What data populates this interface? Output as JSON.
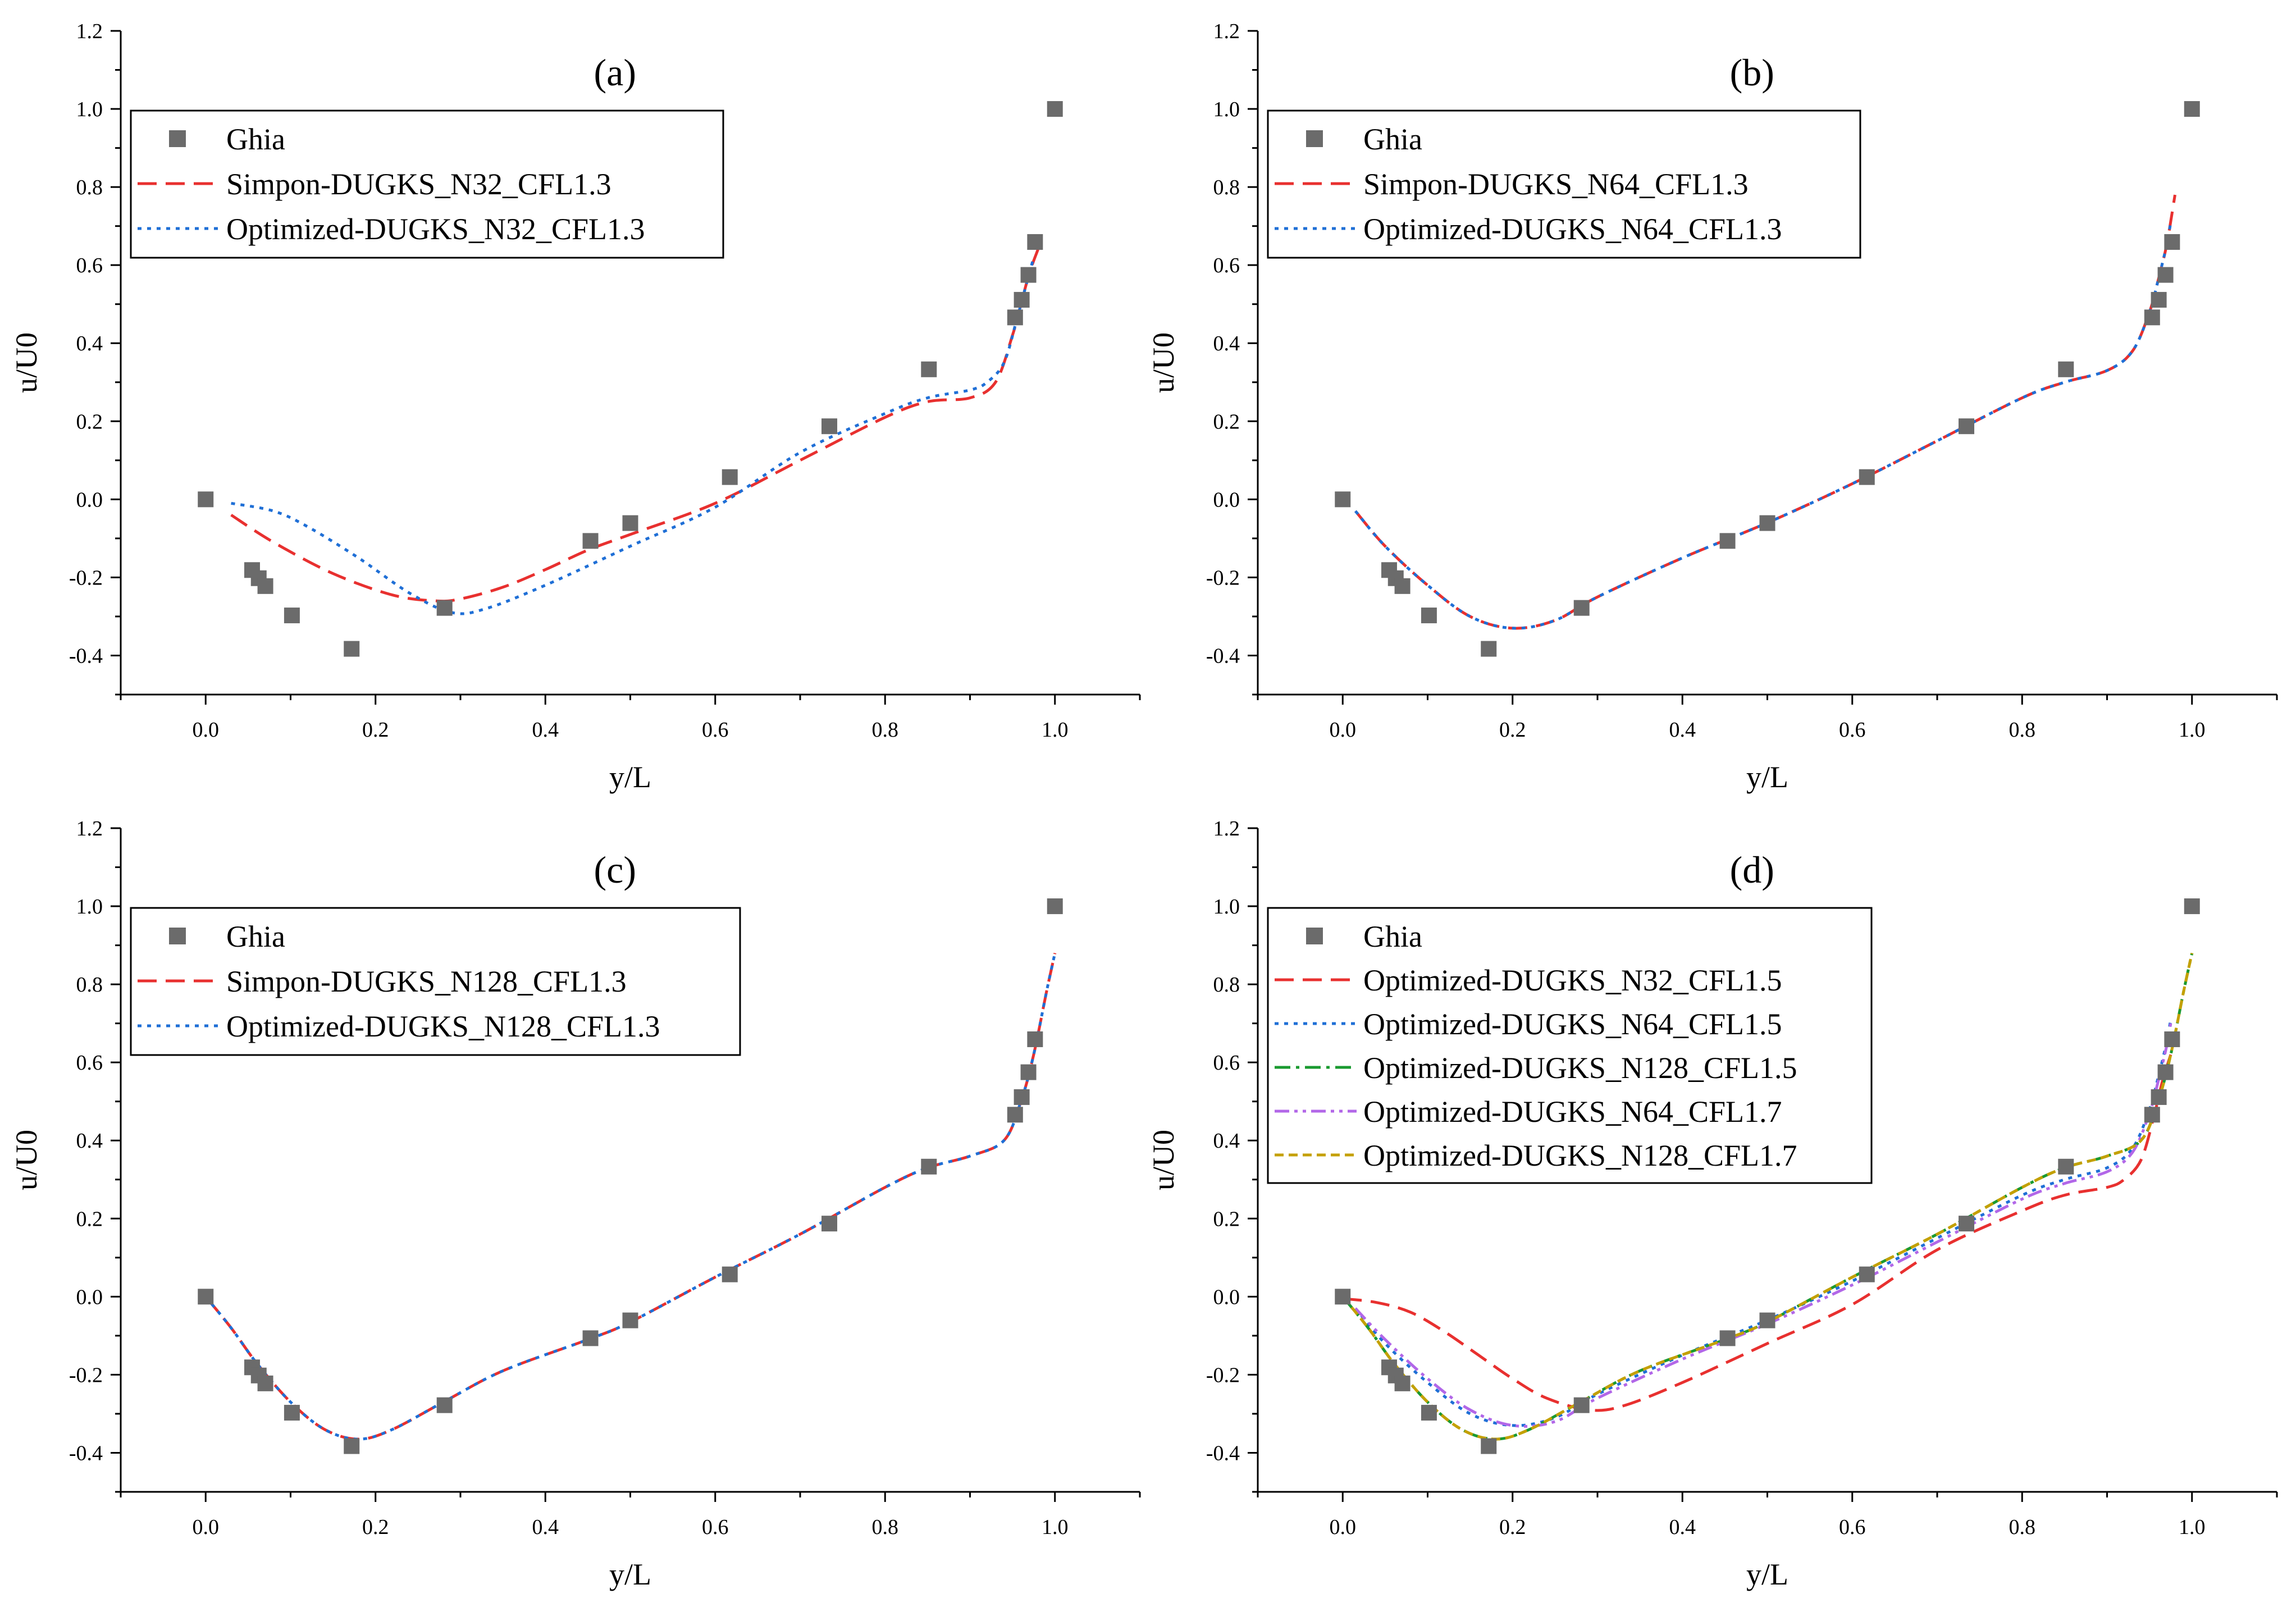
{
  "chart_data": [
    {
      "type": "line",
      "title": "(a)",
      "xlabel": "y/L",
      "ylabel": "u/U0",
      "xlim": [
        -0.1,
        1.1
      ],
      "ylim": [
        -0.5,
        1.2
      ],
      "xticks": [
        0.0,
        0.2,
        0.4,
        0.6,
        0.8,
        1.0
      ],
      "xtick_labels": [
        "0.0",
        "0.2",
        "0.4",
        "0.6",
        "0.8",
        "1.0"
      ],
      "yticks": [
        -0.4,
        -0.2,
        0.0,
        0.2,
        0.4,
        0.6,
        0.8,
        1.0,
        1.2
      ],
      "ytick_labels": [
        "-0.4",
        "-0.2",
        "0.0",
        "0.2",
        "0.4",
        "0.6",
        "0.8",
        "1.0",
        "1.2"
      ],
      "legend": "top-left",
      "series": [
        {
          "name": "Ghia",
          "kind": "marker",
          "color": "#6b6b6b",
          "x": [
            0.0,
            0.0547,
            0.0625,
            0.0703,
            0.1016,
            0.1719,
            0.2813,
            0.4531,
            0.5,
            0.6172,
            0.7344,
            0.8516,
            0.9531,
            0.9609,
            0.9688,
            0.9766,
            1.0
          ],
          "y": [
            0.0,
            -0.18109,
            -0.20196,
            -0.2222,
            -0.2973,
            -0.38289,
            -0.27805,
            -0.10648,
            -0.0608,
            0.05702,
            0.18719,
            0.33304,
            0.46604,
            0.51117,
            0.57492,
            0.65928,
            1.0
          ]
        },
        {
          "name": "Simpon-DUGKS_N32_CFL1.3",
          "kind": "line",
          "dash": "dash",
          "color": "#e8302f",
          "x": [
            0.03,
            0.08,
            0.15,
            0.22,
            0.27,
            0.3,
            0.35,
            0.4,
            0.45,
            0.5,
            0.6,
            0.7,
            0.8,
            0.85,
            0.9,
            0.93,
            0.95,
            0.96,
            0.97,
            0.98
          ],
          "y": [
            -0.04,
            -0.11,
            -0.19,
            -0.245,
            -0.26,
            -0.255,
            -0.225,
            -0.18,
            -0.13,
            -0.09,
            -0.01,
            0.1,
            0.21,
            0.25,
            0.26,
            0.3,
            0.42,
            0.5,
            0.58,
            0.64
          ]
        },
        {
          "name": "Optimized-DUGKS_N32_CFL1.3",
          "kind": "line",
          "dash": "dot",
          "color": "#1f6fd6",
          "x": [
            0.03,
            0.08,
            0.12,
            0.18,
            0.24,
            0.29,
            0.33,
            0.4,
            0.5,
            0.6,
            0.7,
            0.8,
            0.85,
            0.9,
            0.92,
            0.94,
            0.955,
            0.965,
            0.975
          ],
          "y": [
            -0.01,
            -0.03,
            -0.07,
            -0.15,
            -0.24,
            -0.29,
            -0.28,
            -0.22,
            -0.12,
            -0.02,
            0.12,
            0.22,
            0.26,
            0.28,
            0.3,
            0.35,
            0.46,
            0.54,
            0.62
          ]
        }
      ]
    },
    {
      "type": "line",
      "title": "(b)",
      "xlabel": "y/L",
      "ylabel": "u/U0",
      "xlim": [
        -0.1,
        1.1
      ],
      "ylim": [
        -0.5,
        1.2
      ],
      "xticks": [
        0.0,
        0.2,
        0.4,
        0.6,
        0.8,
        1.0
      ],
      "xtick_labels": [
        "0.0",
        "0.2",
        "0.4",
        "0.6",
        "0.8",
        "1.0"
      ],
      "yticks": [
        -0.4,
        -0.2,
        0.0,
        0.2,
        0.4,
        0.6,
        0.8,
        1.0,
        1.2
      ],
      "ytick_labels": [
        "-0.4",
        "-0.2",
        "0.0",
        "0.2",
        "0.4",
        "0.6",
        "0.8",
        "1.0",
        "1.2"
      ],
      "legend": "top-left",
      "series": [
        {
          "name": "Ghia",
          "kind": "marker",
          "color": "#6b6b6b",
          "x": [
            0.0,
            0.0547,
            0.0625,
            0.0703,
            0.1016,
            0.1719,
            0.2813,
            0.4531,
            0.5,
            0.6172,
            0.7344,
            0.8516,
            0.9531,
            0.9609,
            0.9688,
            0.9766,
            1.0
          ],
          "y": [
            0.0,
            -0.18109,
            -0.20196,
            -0.2222,
            -0.2973,
            -0.38289,
            -0.27805,
            -0.10648,
            -0.0608,
            0.05702,
            0.18719,
            0.33304,
            0.46604,
            0.51117,
            0.57492,
            0.65928,
            1.0
          ]
        },
        {
          "name": "Simpon-DUGKS_N64_CFL1.3",
          "kind": "line",
          "dash": "dash",
          "color": "#e8302f",
          "x": [
            0.015,
            0.05,
            0.1,
            0.15,
            0.2,
            0.25,
            0.3,
            0.4,
            0.5,
            0.6,
            0.7,
            0.8,
            0.85,
            0.9,
            0.93,
            0.95,
            0.96,
            0.97,
            0.98
          ],
          "y": [
            -0.03,
            -0.12,
            -0.22,
            -0.3,
            -0.33,
            -0.31,
            -0.25,
            -0.15,
            -0.06,
            0.04,
            0.15,
            0.26,
            0.3,
            0.33,
            0.38,
            0.48,
            0.56,
            0.65,
            0.78
          ]
        },
        {
          "name": "Optimized-DUGKS_N64_CFL1.3",
          "kind": "line",
          "dash": "dot",
          "color": "#1f6fd6",
          "x": [
            0.015,
            0.05,
            0.1,
            0.15,
            0.2,
            0.25,
            0.3,
            0.4,
            0.5,
            0.6,
            0.7,
            0.8,
            0.85,
            0.9,
            0.93,
            0.95,
            0.96,
            0.97,
            0.975
          ],
          "y": [
            -0.03,
            -0.12,
            -0.22,
            -0.3,
            -0.33,
            -0.31,
            -0.25,
            -0.15,
            -0.06,
            0.04,
            0.15,
            0.26,
            0.3,
            0.33,
            0.38,
            0.48,
            0.56,
            0.65,
            0.71
          ]
        }
      ]
    },
    {
      "type": "line",
      "title": "(c)",
      "xlabel": "y/L",
      "ylabel": "u/U0",
      "xlim": [
        -0.1,
        1.1
      ],
      "ylim": [
        -0.5,
        1.2
      ],
      "xticks": [
        0.0,
        0.2,
        0.4,
        0.6,
        0.8,
        1.0
      ],
      "xtick_labels": [
        "0.0",
        "0.2",
        "0.4",
        "0.6",
        "0.8",
        "1.0"
      ],
      "yticks": [
        -0.4,
        -0.2,
        0.0,
        0.2,
        0.4,
        0.6,
        0.8,
        1.0,
        1.2
      ],
      "ytick_labels": [
        "-0.4",
        "-0.2",
        "0.0",
        "0.2",
        "0.4",
        "0.6",
        "0.8",
        "1.0",
        "1.2"
      ],
      "legend": "top-left",
      "series": [
        {
          "name": "Ghia",
          "kind": "marker",
          "color": "#6b6b6b",
          "x": [
            0.0,
            0.0547,
            0.0625,
            0.0703,
            0.1016,
            0.1719,
            0.2813,
            0.4531,
            0.5,
            0.6172,
            0.7344,
            0.8516,
            0.9531,
            0.9609,
            0.9688,
            0.9766,
            1.0
          ],
          "y": [
            0.0,
            -0.18109,
            -0.20196,
            -0.2222,
            -0.2973,
            -0.38289,
            -0.27805,
            -0.10648,
            -0.0608,
            0.05702,
            0.18719,
            0.33304,
            0.46604,
            0.51117,
            0.57492,
            0.65928,
            1.0
          ]
        },
        {
          "name": "Simpon-DUGKS_N128_CFL1.3",
          "kind": "line",
          "dash": "dash",
          "color": "#e8302f",
          "x": [
            0.0,
            0.03,
            0.06,
            0.1,
            0.14,
            0.18,
            0.22,
            0.28,
            0.35,
            0.45,
            0.5,
            0.6,
            0.7,
            0.8,
            0.85,
            0.9,
            0.94,
            0.96,
            0.975,
            0.99,
            1.0
          ],
          "y": [
            0.0,
            -0.08,
            -0.17,
            -0.27,
            -0.34,
            -0.365,
            -0.34,
            -0.27,
            -0.19,
            -0.11,
            -0.065,
            0.05,
            0.16,
            0.28,
            0.33,
            0.36,
            0.4,
            0.5,
            0.62,
            0.78,
            0.88
          ]
        },
        {
          "name": "Optimized-DUGKS_N128_CFL1.3",
          "kind": "line",
          "dash": "dot",
          "color": "#1f6fd6",
          "x": [
            0.0,
            0.03,
            0.06,
            0.1,
            0.14,
            0.18,
            0.22,
            0.28,
            0.35,
            0.45,
            0.5,
            0.6,
            0.7,
            0.8,
            0.85,
            0.9,
            0.94,
            0.96,
            0.975,
            0.99,
            1.0
          ],
          "y": [
            0.0,
            -0.08,
            -0.17,
            -0.27,
            -0.34,
            -0.365,
            -0.34,
            -0.27,
            -0.19,
            -0.11,
            -0.065,
            0.05,
            0.16,
            0.28,
            0.33,
            0.36,
            0.4,
            0.5,
            0.62,
            0.78,
            0.88
          ]
        }
      ]
    },
    {
      "type": "line",
      "title": "(d)",
      "xlabel": "y/L",
      "ylabel": "u/U0",
      "xlim": [
        -0.1,
        1.1
      ],
      "ylim": [
        -0.5,
        1.2
      ],
      "xticks": [
        0.0,
        0.2,
        0.4,
        0.6,
        0.8,
        1.0
      ],
      "xtick_labels": [
        "0.0",
        "0.2",
        "0.4",
        "0.6",
        "0.8",
        "1.0"
      ],
      "yticks": [
        -0.4,
        -0.2,
        0.0,
        0.2,
        0.4,
        0.6,
        0.8,
        1.0,
        1.2
      ],
      "ytick_labels": [
        "-0.4",
        "-0.2",
        "0.0",
        "0.2",
        "0.4",
        "0.6",
        "0.8",
        "1.0",
        "1.2"
      ],
      "legend": "top-left",
      "series": [
        {
          "name": "Ghia",
          "kind": "marker",
          "color": "#6b6b6b",
          "x": [
            0.0,
            0.0547,
            0.0625,
            0.0703,
            0.1016,
            0.1719,
            0.2813,
            0.4531,
            0.5,
            0.6172,
            0.7344,
            0.8516,
            0.9531,
            0.9609,
            0.9688,
            0.9766,
            1.0
          ],
          "y": [
            0.0,
            -0.18109,
            -0.20196,
            -0.2222,
            -0.2973,
            -0.38289,
            -0.27805,
            -0.10648,
            -0.0608,
            0.05702,
            0.18719,
            0.33304,
            0.46604,
            0.51117,
            0.57492,
            0.65928,
            1.0
          ]
        },
        {
          "name": "Optimized-DUGKS_N32_CFL1.5",
          "kind": "line",
          "dash": "dash",
          "color": "#e8302f",
          "x": [
            0.0,
            0.04,
            0.08,
            0.12,
            0.16,
            0.2,
            0.24,
            0.29,
            0.33,
            0.4,
            0.5,
            0.6,
            0.7,
            0.8,
            0.85,
            0.9,
            0.92,
            0.94,
            0.955,
            0.965,
            0.975
          ],
          "y": [
            -0.005,
            -0.015,
            -0.04,
            -0.09,
            -0.15,
            -0.21,
            -0.26,
            -0.29,
            -0.28,
            -0.22,
            -0.12,
            -0.02,
            0.12,
            0.22,
            0.26,
            0.28,
            0.3,
            0.35,
            0.46,
            0.55,
            0.62
          ]
        },
        {
          "name": "Optimized-DUGKS_N64_CFL1.5",
          "kind": "line",
          "dash": "dot",
          "color": "#1f6fd6",
          "x": [
            0.015,
            0.05,
            0.1,
            0.15,
            0.2,
            0.25,
            0.3,
            0.4,
            0.5,
            0.6,
            0.7,
            0.8,
            0.85,
            0.9,
            0.93,
            0.95,
            0.96,
            0.97,
            0.975
          ],
          "y": [
            -0.03,
            -0.12,
            -0.22,
            -0.3,
            -0.33,
            -0.31,
            -0.25,
            -0.15,
            -0.06,
            0.04,
            0.15,
            0.26,
            0.3,
            0.33,
            0.38,
            0.48,
            0.56,
            0.65,
            0.71
          ]
        },
        {
          "name": "Optimized-DUGKS_N128_CFL1.5",
          "kind": "line",
          "dash": "dashdot",
          "color": "#1a9a30",
          "x": [
            0.0,
            0.03,
            0.06,
            0.1,
            0.14,
            0.18,
            0.22,
            0.28,
            0.35,
            0.45,
            0.5,
            0.6,
            0.7,
            0.8,
            0.85,
            0.9,
            0.94,
            0.96,
            0.975,
            0.99,
            1.0
          ],
          "y": [
            0.0,
            -0.08,
            -0.17,
            -0.27,
            -0.34,
            -0.365,
            -0.34,
            -0.27,
            -0.19,
            -0.11,
            -0.065,
            0.05,
            0.16,
            0.28,
            0.33,
            0.36,
            0.4,
            0.5,
            0.62,
            0.78,
            0.88
          ]
        },
        {
          "name": "Optimized-DUGKS_N64_CFL1.7",
          "kind": "line",
          "dash": "dashdotdot",
          "color": "#b267e8",
          "x": [
            0.015,
            0.05,
            0.1,
            0.15,
            0.2,
            0.25,
            0.3,
            0.4,
            0.5,
            0.6,
            0.7,
            0.8,
            0.85,
            0.9,
            0.93,
            0.95,
            0.96,
            0.97,
            0.975
          ],
          "y": [
            -0.03,
            -0.11,
            -0.21,
            -0.29,
            -0.33,
            -0.32,
            -0.26,
            -0.16,
            -0.07,
            0.03,
            0.14,
            0.25,
            0.29,
            0.32,
            0.37,
            0.47,
            0.55,
            0.64,
            0.7
          ]
        },
        {
          "name": "Optimized-DUGKS_N128_CFL1.7",
          "kind": "line",
          "dash": "shortdash",
          "color": "#c4a000",
          "x": [
            0.0,
            0.03,
            0.06,
            0.1,
            0.14,
            0.18,
            0.22,
            0.28,
            0.35,
            0.45,
            0.5,
            0.6,
            0.7,
            0.8,
            0.85,
            0.9,
            0.94,
            0.96,
            0.975,
            0.99,
            1.0
          ],
          "y": [
            0.0,
            -0.08,
            -0.17,
            -0.27,
            -0.34,
            -0.365,
            -0.34,
            -0.27,
            -0.19,
            -0.11,
            -0.065,
            0.05,
            0.16,
            0.28,
            0.33,
            0.36,
            0.4,
            0.5,
            0.62,
            0.78,
            0.88
          ]
        }
      ]
    }
  ]
}
